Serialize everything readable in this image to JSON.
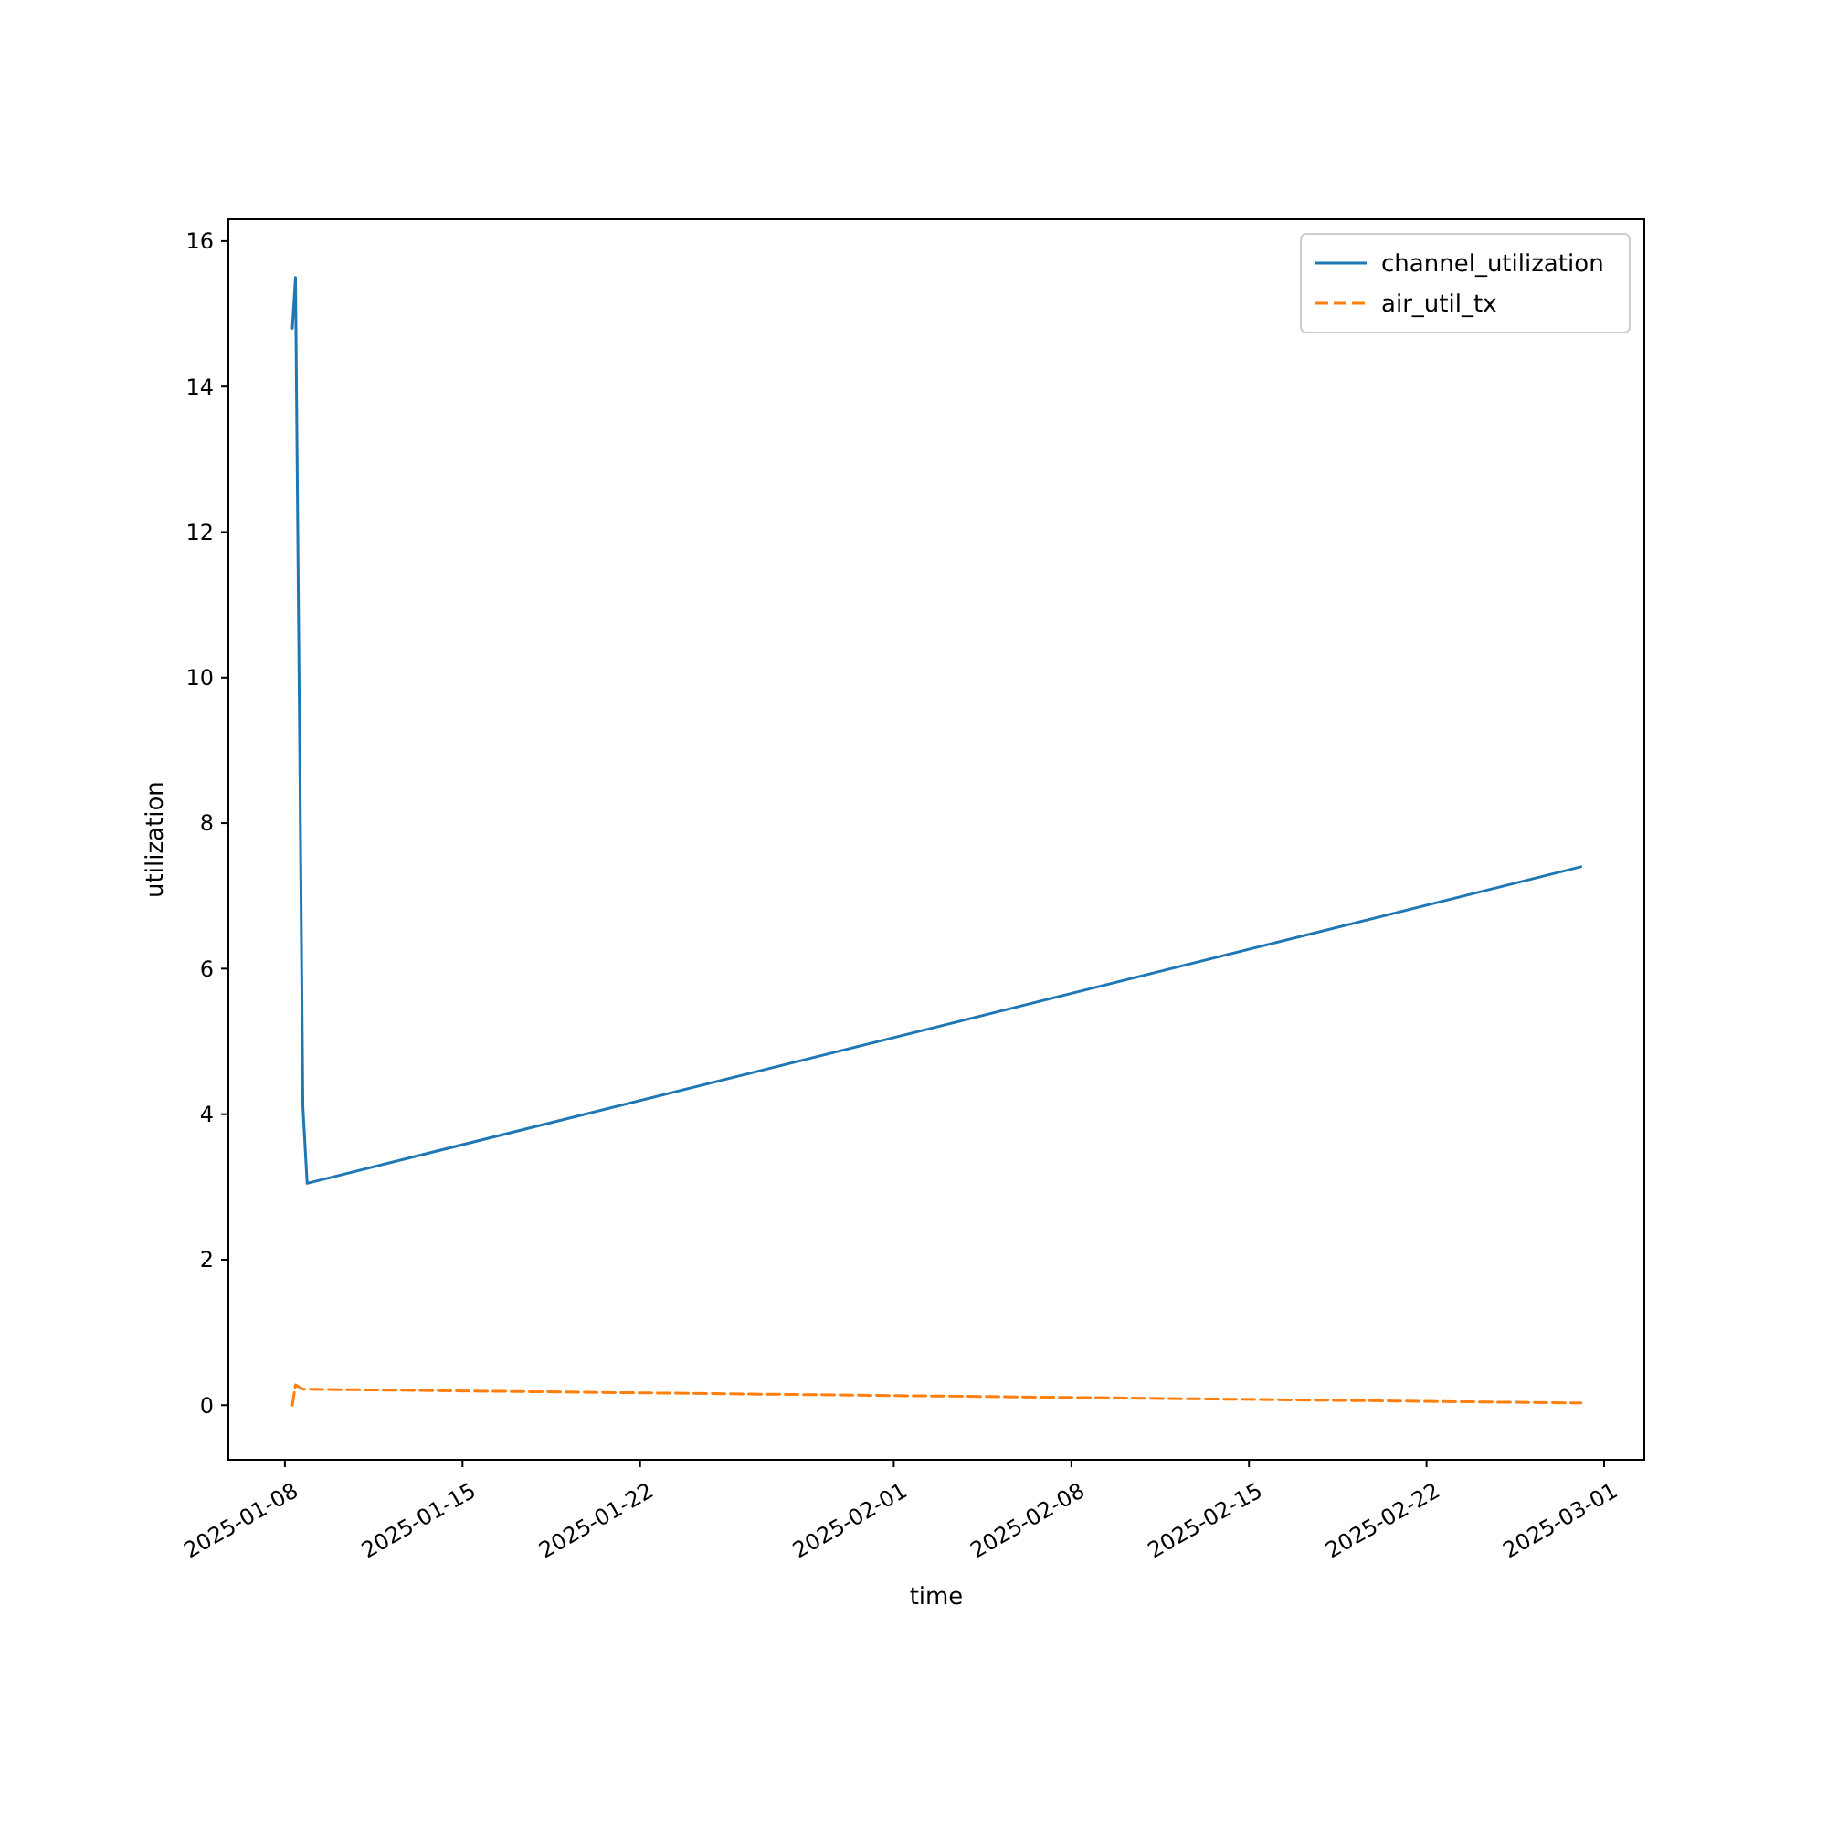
{
  "chart_data": {
    "type": "line",
    "xlabel": "time",
    "ylabel": "utilization",
    "x": [
      "2025-01-08T07:00",
      "2025-01-08T10:00",
      "2025-01-08T17:00",
      "2025-01-08T21:00",
      "2025-02-28T02:00"
    ],
    "series": [
      {
        "name": "channel_utilization",
        "color": "#1f77b4",
        "line_style": "solid",
        "values": [
          14.8,
          15.5,
          4.1,
          3.05,
          7.4
        ]
      },
      {
        "name": "air_util_tx",
        "color": "#ff7f0e",
        "line_style": "dashed",
        "values": [
          0.0,
          0.28,
          0.22,
          0.22,
          0.03
        ]
      }
    ],
    "xlim": [
      "2025-01-05T18:30",
      "2025-03-02T14:00"
    ],
    "xticks": [
      "2025-01-08",
      "2025-01-15",
      "2025-01-22",
      "2025-02-01",
      "2025-02-08",
      "2025-02-15",
      "2025-02-22",
      "2025-03-01"
    ],
    "ylim": [
      -0.75,
      16.3
    ],
    "yticks": [
      0,
      2,
      4,
      6,
      8,
      10,
      12,
      14,
      16
    ],
    "legend": "top right",
    "marker": "none"
  }
}
